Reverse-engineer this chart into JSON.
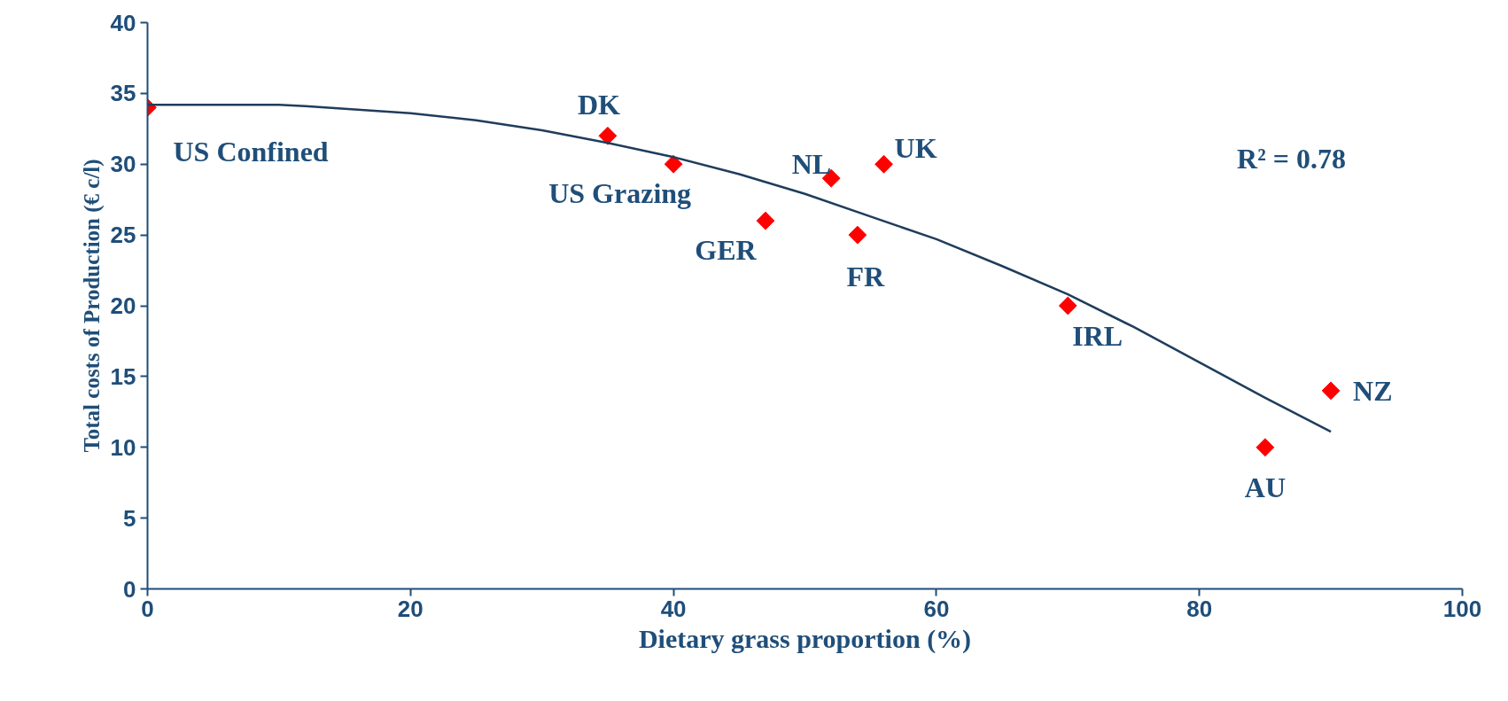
{
  "chart_data": {
    "type": "scatter",
    "xlabel": "Dietary grass proportion (%)",
    "ylabel": "Total costs of Production (€ c/l)",
    "xlim": [
      0,
      100
    ],
    "xticks": [
      0,
      20,
      40,
      60,
      80,
      100
    ],
    "ylim": [
      0,
      40
    ],
    "yticks": [
      0,
      5,
      10,
      15,
      20,
      25,
      30,
      35,
      40
    ],
    "grid": false,
    "series": [
      {
        "marker": "diamond",
        "color": "#ff0000",
        "x": [
          0,
          35,
          40,
          47,
          52,
          54,
          56,
          70,
          85,
          90
        ],
        "values": [
          34,
          32,
          30,
          26,
          29,
          25,
          30,
          20,
          10,
          14
        ]
      },
      {
        "type": "line",
        "marker": "none",
        "line_style": "solid",
        "color": "#1f3d5c",
        "x": [
          0,
          10,
          12,
          20,
          25,
          30,
          35,
          40,
          45,
          50,
          55,
          60,
          65,
          70,
          75,
          80,
          85,
          90
        ],
        "values": [
          34.2,
          34.2,
          34.1,
          33.6,
          33.1,
          32.4,
          31.5,
          30.5,
          29.3,
          27.9,
          26.3,
          24.7,
          22.8,
          20.8,
          18.5,
          16.0,
          13.5,
          11.1
        ]
      }
    ],
    "annotations": [
      {
        "text": "US Confined",
        "x": 0,
        "y": 34
      },
      {
        "text": "DK",
        "x": 35,
        "y": 32
      },
      {
        "text": "US Grazing",
        "x": 40,
        "y": 30
      },
      {
        "text": "GER",
        "x": 47,
        "y": 26
      },
      {
        "text": "NL",
        "x": 52,
        "y": 29
      },
      {
        "text": "FR",
        "x": 54,
        "y": 25
      },
      {
        "text": "UK",
        "x": 56,
        "y": 30
      },
      {
        "text": "IRL",
        "x": 70,
        "y": 20
      },
      {
        "text": "AU",
        "x": 85,
        "y": 10
      },
      {
        "text": "NZ",
        "x": 90,
        "y": 14
      },
      "R² = 0.78"
    ]
  }
}
